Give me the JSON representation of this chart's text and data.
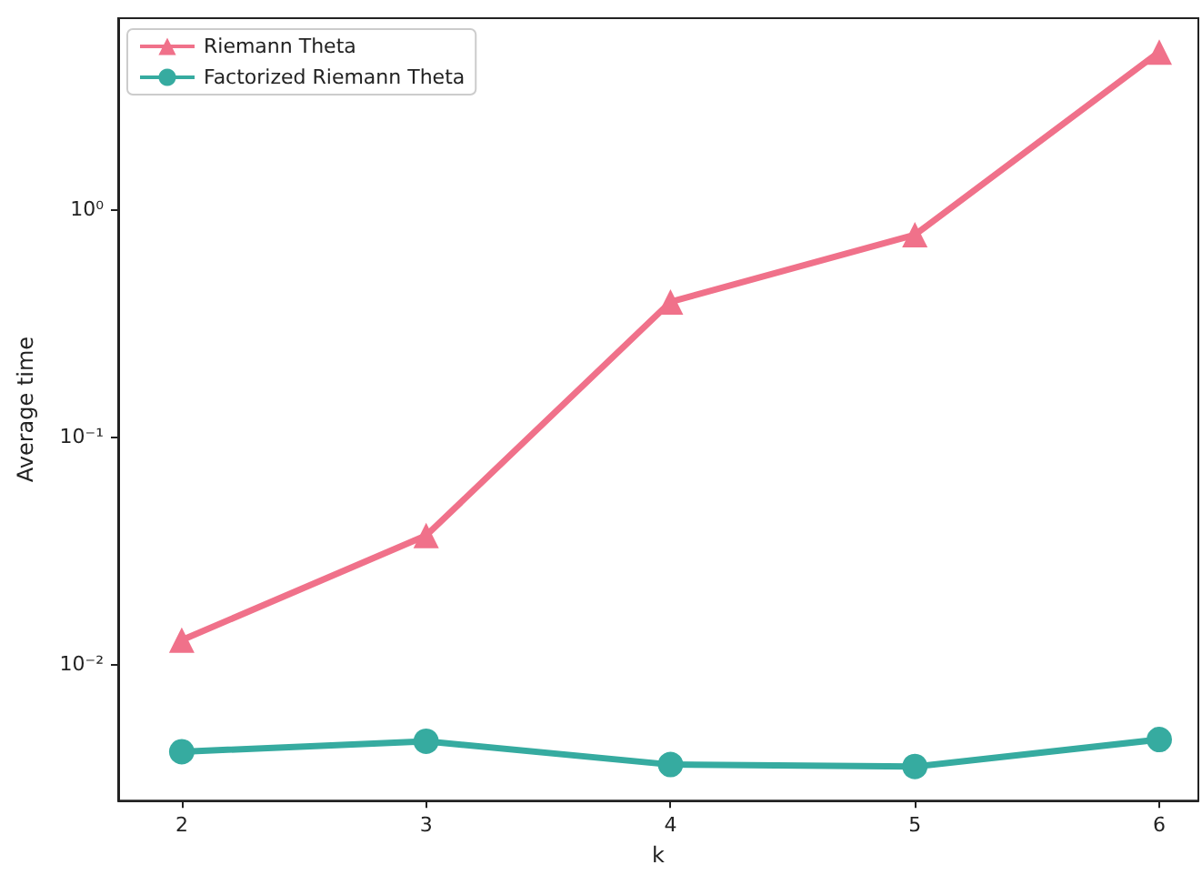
{
  "chart_data": {
    "type": "line",
    "xlabel": "k",
    "ylabel": "Average time",
    "x": [
      2,
      3,
      4,
      5,
      6
    ],
    "series": [
      {
        "name": "Riemann Theta",
        "color": "#f0718a",
        "marker": "triangle",
        "values": [
          0.0127,
          0.0366,
          0.39,
          0.77,
          4.9
        ]
      },
      {
        "name": "Factorized Riemann Theta",
        "color": "#36aba0",
        "marker": "circle",
        "values": [
          0.0041,
          0.00456,
          0.0036,
          0.00353,
          0.00464
        ]
      }
    ],
    "log": "y",
    "xlim": [
      1.74,
      6.16
    ],
    "xticks": [
      2,
      3,
      4,
      5,
      6
    ],
    "ylim": [
      0.0025,
      6.9
    ],
    "yticks": [
      {
        "value": 0.01,
        "label": "10⁻²"
      },
      {
        "value": 0.1,
        "label": "10⁻¹"
      },
      {
        "value": 1,
        "label": "10⁰"
      }
    ],
    "legend": "top left",
    "grid": false,
    "line_style": "solid"
  }
}
